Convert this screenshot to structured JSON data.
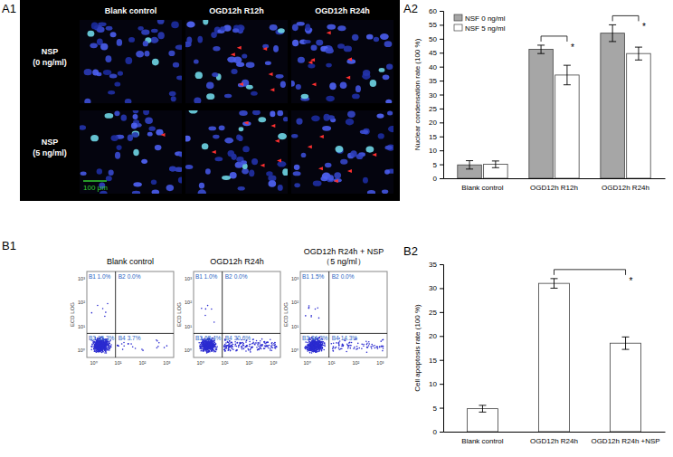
{
  "panel_labels": [
    "A1",
    "A2",
    "B1",
    "B2"
  ],
  "images": {
    "columns": [
      "Blank control",
      "OGD12h R12h",
      "OGD12h R24h"
    ],
    "rows": [
      [
        "NSP",
        "(0 ng/ml)"
      ],
      [
        "NSP",
        "(5 ng/ml)"
      ]
    ],
    "scale_bar": "100 μm"
  },
  "flow": {
    "y_label": "ECD LOG",
    "axis_ticks": [
      "10⁰",
      "10¹",
      "10²",
      "10³"
    ],
    "plots": [
      {
        "title": [
          "Blank control"
        ],
        "quadrants": [
          {
            "name": "B1",
            "value": 1.0,
            "label": "1.0%"
          },
          {
            "name": "B2",
            "value": 0.0,
            "label": "0.0%"
          },
          {
            "name": "B3",
            "value": 95.3,
            "label": "95.3%"
          },
          {
            "name": "B4",
            "value": 3.7,
            "label": "3.7%"
          }
        ]
      },
      {
        "title": [
          "OGD12h R24h"
        ],
        "quadrants": [
          {
            "name": "B1",
            "value": 1.0,
            "label": "1.0%"
          },
          {
            "name": "B2",
            "value": 0.0,
            "label": "0.0%"
          },
          {
            "name": "B3",
            "value": 68.4,
            "label": "68.4%"
          },
          {
            "name": "B4",
            "value": 30.6,
            "label": "30.6%"
          }
        ]
      },
      {
        "title": [
          "OGD12h R24h + NSP",
          "（5 ng/ml）"
        ],
        "quadrants": [
          {
            "name": "B1",
            "value": 1.5,
            "label": "1.5%"
          },
          {
            "name": "B2",
            "value": 0.0,
            "label": "0.0%"
          },
          {
            "name": "B3",
            "value": 84.2,
            "label": "84.2%"
          },
          {
            "name": "B4",
            "value": 14.3,
            "label": "14.3%"
          }
        ]
      }
    ]
  },
  "chart_data": [
    {
      "type": "bar",
      "y_label": "Nuclear condensation rate (100 %)",
      "categories": [
        "Blank control",
        "OGD12h R12h",
        "OGD12h R24h"
      ],
      "series": [
        {
          "name": "NSF 0 ng/ml",
          "color": "#a6a6a6",
          "values": [
            4.8,
            46.2,
            52
          ],
          "errors": [
            1.5,
            1.5,
            3
          ]
        },
        {
          "name": "NSF 5 ng/ml",
          "color": "#ffffff",
          "values": [
            5,
            37,
            44.7
          ],
          "errors": [
            1.2,
            3.5,
            2.3
          ]
        }
      ],
      "ylim": [
        0,
        60
      ],
      "yticks": [
        0,
        5,
        10,
        15,
        20,
        25,
        30,
        35,
        40,
        45,
        50,
        55,
        60
      ],
      "legend": "upper left",
      "annotations": [
        {
          "text": "*",
          "categories": [
            "OGD12h R12h"
          ]
        },
        {
          "text": "*",
          "categories": [
            "OGD12h R24h"
          ]
        }
      ]
    },
    {
      "type": "bar",
      "y_label": "Cell apoptosis rate (100 %)",
      "categories": [
        "Blank control",
        "OGD12h R24h",
        "OGD12h R24h +NSP"
      ],
      "series": [
        {
          "color": "#ffffff",
          "values": [
            4.8,
            31,
            18.5
          ],
          "errors": [
            0.7,
            1,
            1.3
          ]
        }
      ],
      "ylim": [
        0,
        35
      ],
      "yticks": [
        0,
        5,
        10,
        15,
        20,
        25,
        30,
        35
      ],
      "annotations": [
        {
          "text": "*",
          "categories": [
            "OGD12h R24h",
            "OGD12h R24h +NSP"
          ]
        }
      ]
    }
  ]
}
